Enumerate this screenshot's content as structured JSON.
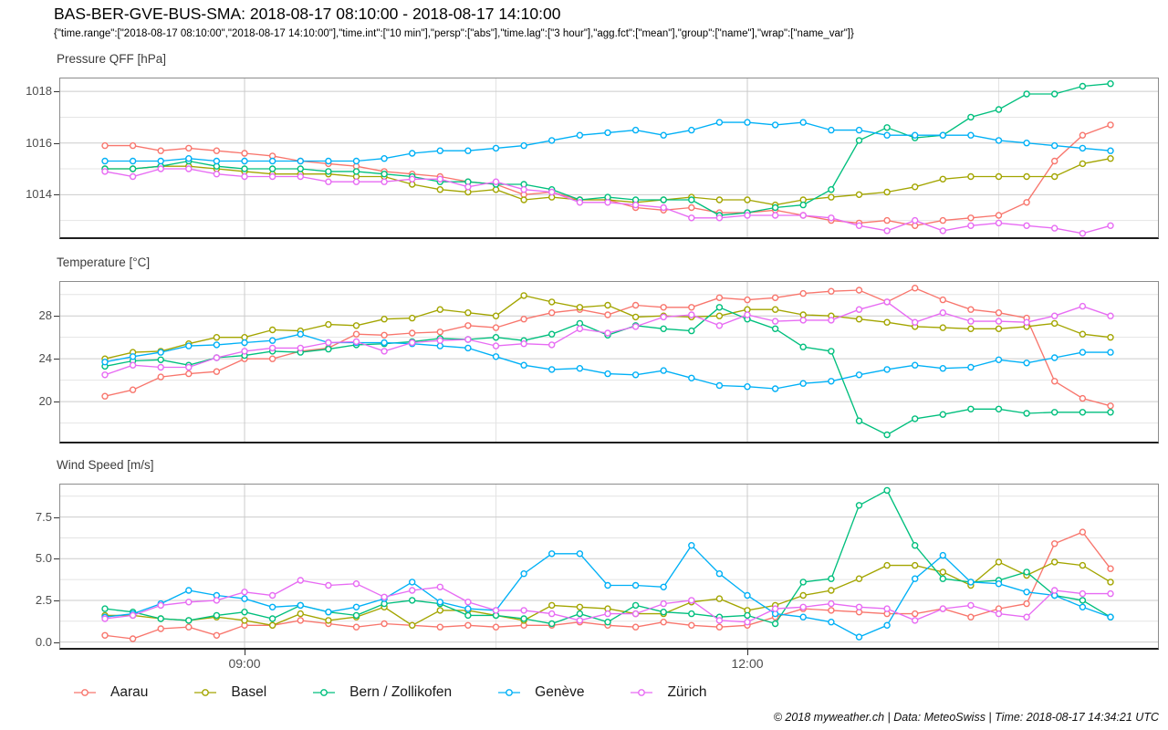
{
  "header": {
    "title": "BAS-BER-GVE-BUS-SMA: 2018-08-17 08:10:00 - 2018-08-17 14:10:00",
    "subtitle": "{\"time.range\":[\"2018-08-17 08:10:00\",\"2018-08-17 14:10:00\"],\"time.int\":[\"10 min\"],\"persp\":[\"abs\"],\"time.lag\":[\"3 hour\"],\"agg.fct\":[\"mean\"],\"group\":[\"name\"],\"wrap\":[\"name_var\"]}"
  },
  "x_axis": {
    "unit": "minutes since 2018-08-17 08:10",
    "minutes": [
      0,
      10,
      20,
      30,
      40,
      50,
      60,
      70,
      80,
      90,
      100,
      110,
      120,
      130,
      140,
      150,
      160,
      170,
      180,
      190,
      200,
      210,
      220,
      230,
      240,
      250,
      260,
      270,
      280,
      290,
      300,
      310,
      320,
      330,
      340,
      350,
      360
    ],
    "range": [
      -16,
      377
    ],
    "major_ticks": [
      {
        "label": "09:00",
        "t": 50
      },
      {
        "label": "12:00",
        "t": 230
      }
    ],
    "minor_ticks": [
      140,
      320
    ]
  },
  "chart_data": [
    {
      "type": "line",
      "title": "Pressure QFF [hPa]",
      "ylim": [
        1012.35,
        1018.5
      ],
      "yticks": [
        {
          "label": "1014",
          "v": 1014
        },
        {
          "label": "1016",
          "v": 1016
        },
        {
          "label": "1018",
          "v": 1018
        }
      ],
      "y_minor": [
        1013,
        1015,
        1017
      ],
      "grid": true,
      "legend_position": "bottom",
      "series": [
        {
          "name": "Aarau",
          "color": "#F8766D",
          "values": [
            1015.9,
            1015.9,
            1015.7,
            1015.8,
            1015.7,
            1015.6,
            1015.5,
            1015.3,
            1015.2,
            1015.1,
            1014.9,
            1014.8,
            1014.7,
            1014.5,
            1014.4,
            1014.0,
            1014.1,
            1013.8,
            1013.8,
            1013.5,
            1013.4,
            1013.5,
            1013.3,
            1013.3,
            1013.4,
            1013.2,
            1013.0,
            1012.9,
            1013.0,
            1012.8,
            1013.0,
            1013.1,
            1013.2,
            1013.7,
            1015.3,
            1016.3,
            1016.7
          ]
        },
        {
          "name": "Basel",
          "color": "#A3A500",
          "values": [
            1015.0,
            1015.0,
            1015.1,
            1015.1,
            1015.0,
            1014.9,
            1014.8,
            1014.8,
            1014.8,
            1014.7,
            1014.7,
            1014.4,
            1014.2,
            1014.1,
            1014.2,
            1013.8,
            1013.9,
            1013.8,
            1013.8,
            1013.7,
            1013.8,
            1013.9,
            1013.8,
            1013.8,
            1013.6,
            1013.8,
            1013.9,
            1014.0,
            1014.1,
            1014.3,
            1014.6,
            1014.7,
            1014.7,
            1014.7,
            1014.7,
            1015.2,
            1015.4
          ]
        },
        {
          "name": "Bern / Zollikofen",
          "color": "#00BF7D",
          "values": [
            1015.0,
            1015.0,
            1015.1,
            1015.3,
            1015.1,
            1015.0,
            1015.0,
            1015.0,
            1014.9,
            1014.9,
            1014.8,
            1014.7,
            1014.5,
            1014.5,
            1014.4,
            1014.4,
            1014.2,
            1013.8,
            1013.9,
            1013.8,
            1013.8,
            1013.8,
            1013.2,
            1013.3,
            1013.5,
            1013.6,
            1014.2,
            1016.1,
            1016.6,
            1016.2,
            1016.3,
            1017.0,
            1017.3,
            1017.9,
            1017.9,
            1018.2,
            1018.3
          ]
        },
        {
          "name": "Genève",
          "color": "#00B0F6",
          "values": [
            1015.3,
            1015.3,
            1015.3,
            1015.4,
            1015.3,
            1015.3,
            1015.3,
            1015.3,
            1015.3,
            1015.3,
            1015.4,
            1015.6,
            1015.7,
            1015.7,
            1015.8,
            1015.9,
            1016.1,
            1016.3,
            1016.4,
            1016.5,
            1016.3,
            1016.5,
            1016.8,
            1016.8,
            1016.7,
            1016.8,
            1016.5,
            1016.5,
            1016.3,
            1016.3,
            1016.3,
            1016.3,
            1016.1,
            1016.0,
            1015.9,
            1015.8,
            1015.7
          ]
        },
        {
          "name": "Zürich",
          "color": "#E76BF3",
          "values": [
            1014.9,
            1014.7,
            1015.0,
            1015.0,
            1014.8,
            1014.7,
            1014.7,
            1014.7,
            1014.5,
            1014.5,
            1014.5,
            1014.6,
            1014.6,
            1014.3,
            1014.5,
            1014.2,
            1014.1,
            1013.7,
            1013.7,
            1013.6,
            1013.5,
            1013.1,
            1013.1,
            1013.2,
            1013.2,
            1013.2,
            1013.1,
            1012.8,
            1012.6,
            1013.0,
            1012.6,
            1012.8,
            1012.9,
            1012.8,
            1012.7,
            1012.5,
            1012.8
          ]
        }
      ]
    },
    {
      "type": "line",
      "title": "Temperature [°C]",
      "ylim": [
        16.26,
        31.17
      ],
      "yticks": [
        {
          "label": "20",
          "v": 20
        },
        {
          "label": "24",
          "v": 24
        },
        {
          "label": "28",
          "v": 28
        }
      ],
      "y_minor": [
        18,
        22,
        26,
        30
      ],
      "grid": true,
      "legend_position": "bottom",
      "series": [
        {
          "name": "Aarau",
          "color": "#F8766D",
          "values": [
            20.5,
            21.1,
            22.3,
            22.6,
            22.8,
            24.0,
            24.0,
            24.7,
            25.0,
            26.3,
            26.2,
            26.4,
            26.5,
            27.1,
            26.9,
            27.7,
            28.3,
            28.6,
            28.1,
            29.0,
            28.8,
            28.8,
            29.7,
            29.5,
            29.7,
            30.1,
            30.3,
            30.4,
            29.3,
            30.6,
            29.5,
            28.6,
            28.3,
            27.8,
            21.9,
            20.3,
            19.6
          ]
        },
        {
          "name": "Basel",
          "color": "#A3A500",
          "values": [
            24.0,
            24.6,
            24.7,
            25.4,
            26.0,
            26.0,
            26.7,
            26.6,
            27.2,
            27.1,
            27.7,
            27.8,
            28.6,
            28.3,
            28.0,
            29.9,
            29.3,
            28.8,
            29.0,
            27.9,
            28.0,
            27.9,
            28.0,
            28.6,
            28.6,
            28.1,
            28.0,
            27.7,
            27.4,
            27.0,
            26.9,
            26.8,
            26.8,
            27.0,
            27.3,
            26.3,
            26.0
          ]
        },
        {
          "name": "Bern / Zollikofen",
          "color": "#00BF7D",
          "values": [
            23.3,
            23.8,
            23.9,
            23.4,
            24.1,
            24.3,
            24.7,
            24.6,
            24.9,
            25.3,
            25.4,
            25.6,
            25.9,
            25.8,
            26.0,
            25.7,
            26.3,
            27.3,
            26.2,
            27.1,
            26.8,
            26.6,
            28.8,
            27.7,
            26.8,
            25.1,
            24.7,
            18.2,
            16.9,
            18.4,
            18.8,
            19.3,
            19.3,
            18.9,
            19.0,
            19.0,
            19.0
          ]
        },
        {
          "name": "Genève",
          "color": "#00B0F6",
          "values": [
            23.7,
            24.2,
            24.6,
            25.2,
            25.3,
            25.5,
            25.7,
            26.3,
            25.5,
            25.5,
            25.5,
            25.4,
            25.2,
            25.0,
            24.2,
            23.4,
            23.0,
            23.1,
            22.6,
            22.5,
            22.9,
            22.2,
            21.5,
            21.4,
            21.2,
            21.7,
            21.9,
            22.5,
            23.0,
            23.4,
            23.1,
            23.2,
            23.9,
            23.6,
            24.1,
            24.6,
            24.6
          ]
        },
        {
          "name": "Zürich",
          "color": "#E76BF3",
          "values": [
            22.5,
            23.4,
            23.2,
            23.2,
            24.1,
            24.7,
            25.0,
            25.0,
            25.5,
            25.6,
            24.7,
            25.5,
            25.7,
            25.8,
            25.2,
            25.4,
            25.3,
            26.8,
            26.4,
            27.0,
            27.9,
            28.1,
            27.1,
            28.1,
            27.5,
            27.6,
            27.6,
            28.6,
            29.3,
            27.4,
            28.3,
            27.5,
            27.5,
            27.4,
            28.0,
            28.9,
            28.0
          ]
        }
      ]
    },
    {
      "type": "line",
      "title": "Wind Speed [m/s]",
      "ylim": [
        -0.35,
        9.45
      ],
      "yticks": [
        {
          "label": "0.0",
          "v": 0
        },
        {
          "label": "2.5",
          "v": 2.5
        },
        {
          "label": "5.0",
          "v": 5.0
        },
        {
          "label": "7.5",
          "v": 7.5
        }
      ],
      "y_minor": [
        1.25,
        3.75,
        6.25,
        8.75
      ],
      "grid": true,
      "legend_position": "bottom",
      "series": [
        {
          "name": "Aarau",
          "color": "#F8766D",
          "values": [
            0.4,
            0.2,
            0.8,
            0.9,
            0.4,
            1.0,
            1.0,
            1.3,
            1.1,
            0.9,
            1.1,
            1.0,
            0.9,
            1.0,
            0.9,
            1.0,
            1.0,
            1.2,
            1.0,
            0.9,
            1.2,
            1.0,
            0.9,
            1.0,
            1.5,
            2.0,
            1.9,
            1.8,
            1.7,
            1.7,
            2.0,
            1.5,
            2.0,
            2.3,
            5.9,
            6.6,
            4.4
          ]
        },
        {
          "name": "Basel",
          "color": "#A3A500",
          "values": [
            1.6,
            1.6,
            1.4,
            1.3,
            1.5,
            1.3,
            1.0,
            1.7,
            1.3,
            1.5,
            2.1,
            1.0,
            1.9,
            1.9,
            1.6,
            1.3,
            2.2,
            2.1,
            2.0,
            1.7,
            1.7,
            2.4,
            2.6,
            1.9,
            2.2,
            2.8,
            3.1,
            3.8,
            4.6,
            4.6,
            4.2,
            3.4,
            4.8,
            4.0,
            4.8,
            4.6,
            3.6
          ]
        },
        {
          "name": "Bern / Zollikofen",
          "color": "#00BF7D",
          "values": [
            2.0,
            1.8,
            1.4,
            1.3,
            1.6,
            1.8,
            1.4,
            2.2,
            1.8,
            1.6,
            2.3,
            2.5,
            2.3,
            1.6,
            1.6,
            1.4,
            1.1,
            1.7,
            1.2,
            2.2,
            1.8,
            1.7,
            1.5,
            1.6,
            1.1,
            3.6,
            3.8,
            8.2,
            9.1,
            5.8,
            3.8,
            3.6,
            3.7,
            4.2,
            2.8,
            2.5,
            1.5
          ]
        },
        {
          "name": "Genève",
          "color": "#00B0F6",
          "values": [
            1.5,
            1.7,
            2.3,
            3.1,
            2.8,
            2.6,
            2.1,
            2.2,
            1.8,
            2.1,
            2.6,
            3.6,
            2.4,
            2.0,
            1.9,
            4.1,
            5.3,
            5.3,
            3.4,
            3.4,
            3.3,
            5.8,
            4.1,
            2.8,
            1.7,
            1.5,
            1.2,
            0.3,
            1.0,
            3.8,
            5.2,
            3.6,
            3.5,
            3.0,
            2.8,
            2.1,
            1.5
          ]
        },
        {
          "name": "Zürich",
          "color": "#E76BF3",
          "values": [
            1.4,
            1.6,
            2.2,
            2.4,
            2.5,
            3.0,
            2.8,
            3.7,
            3.4,
            3.5,
            2.7,
            3.1,
            3.3,
            2.4,
            1.9,
            1.9,
            1.7,
            1.3,
            1.7,
            1.7,
            2.3,
            2.5,
            1.3,
            1.2,
            2.0,
            2.1,
            2.3,
            2.1,
            2.0,
            1.3,
            2.0,
            2.2,
            1.7,
            1.5,
            3.1,
            2.9,
            2.9
          ]
        }
      ]
    }
  ],
  "legend": {
    "items": [
      {
        "label": "Aarau",
        "color": "#F8766D"
      },
      {
        "label": "Basel",
        "color": "#A3A500"
      },
      {
        "label": "Bern / Zollikofen",
        "color": "#00BF7D"
      },
      {
        "label": "Genève",
        "color": "#00B0F6"
      },
      {
        "label": "Zürich",
        "color": "#E76BF3"
      }
    ]
  },
  "style": {
    "grid_major_color": "#cbcbcb",
    "grid_minor_color": "#e4e4e4",
    "tick_label_color": "#4d4d4d"
  },
  "footer": {
    "text": "© 2018 myweather.ch | Data: MeteoSwiss | Time: 2018-08-17 14:34:21 UTC"
  }
}
